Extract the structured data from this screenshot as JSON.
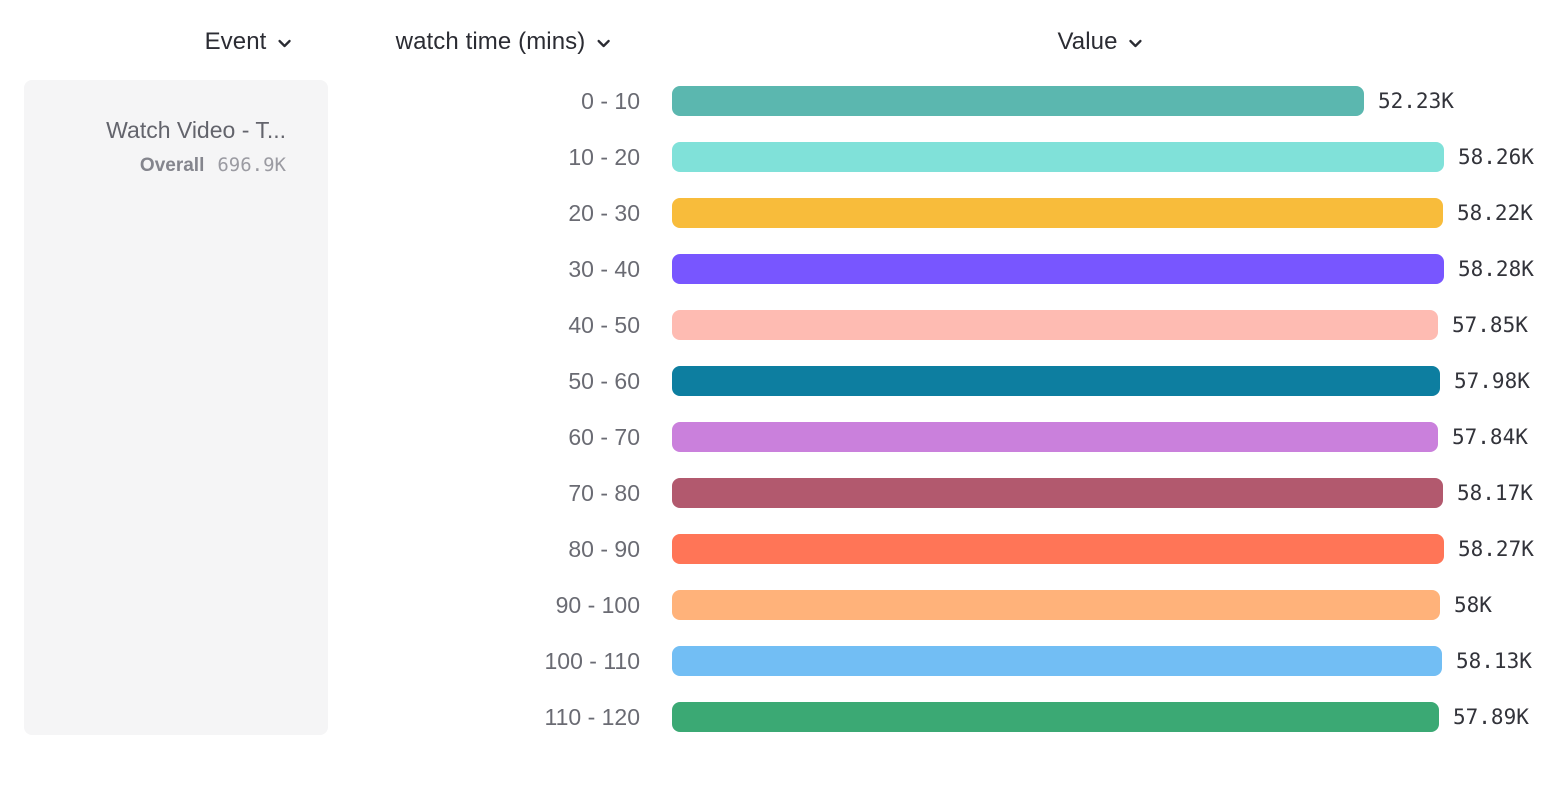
{
  "header": {
    "columns": [
      {
        "id": "event",
        "label": "Event"
      },
      {
        "id": "segment",
        "label": "watch time (mins)"
      },
      {
        "id": "value",
        "label": "Value"
      }
    ]
  },
  "event_card": {
    "name": "Watch Video - T...",
    "overall_label": "Overall",
    "overall_value": "696.9K"
  },
  "chart_data": {
    "type": "bar",
    "orientation": "horizontal",
    "title": "",
    "category_axis_label": "watch time (mins)",
    "value_axis_label": "Value",
    "categories": [
      "0 - 10",
      "10 - 20",
      "20 - 30",
      "30 - 40",
      "40 - 50",
      "50 - 60",
      "60 - 70",
      "70 - 80",
      "80 - 90",
      "90 - 100",
      "100 - 110",
      "110 - 120"
    ],
    "values": [
      52230,
      58260,
      58220,
      58280,
      57850,
      57980,
      57840,
      58170,
      58270,
      58000,
      58130,
      57890
    ],
    "value_labels": [
      "52.23K",
      "58.26K",
      "58.22K",
      "58.28K",
      "57.85K",
      "57.98K",
      "57.84K",
      "58.17K",
      "58.27K",
      "58K",
      "58.13K",
      "57.89K"
    ],
    "colors": [
      "#5BB7AF",
      "#80E1D9",
      "#F8BC3B",
      "#7856FF",
      "#FEBBB2",
      "#0D7EA0",
      "#CA80DC",
      "#B2596E",
      "#FF7557",
      "#FFB27A",
      "#72BEF4",
      "#3BA974"
    ],
    "xlim": [
      0,
      58280
    ],
    "grid": false,
    "legend": false
  },
  "colors": {
    "card_background": "#f5f5f6",
    "header_text": "#2b2c33",
    "category_text": "#6a6b73",
    "value_text": "#32333a"
  }
}
